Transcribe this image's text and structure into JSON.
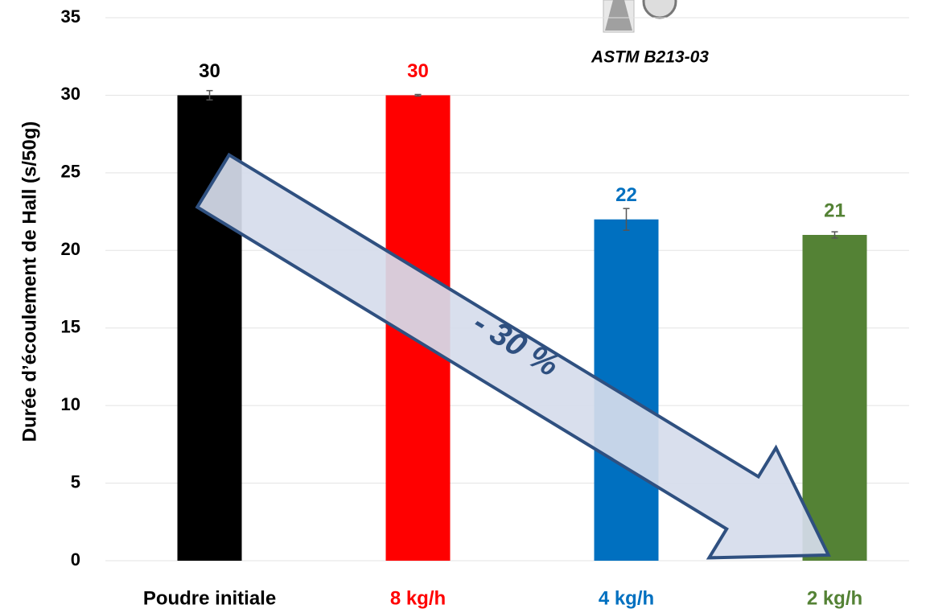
{
  "chart_data": {
    "type": "bar",
    "y_label": "Durée d’écoulement de Hall  (s/50g)",
    "categories": [
      "Poudre initiale",
      "8 kg/h",
      "4 kg/h",
      "2 kg/h"
    ],
    "values": [
      30,
      30,
      22,
      21
    ],
    "errors": [
      0.3,
      0.05,
      0.7,
      0.2
    ],
    "colors": [
      "#000000",
      "#ff0000",
      "#0070c0",
      "#548235"
    ],
    "ylim": [
      0,
      35
    ],
    "yticks": [
      0,
      5,
      10,
      15,
      20,
      25,
      30,
      35
    ],
    "grid": true,
    "annotations": [
      "- 30 %",
      "ASTM B213-03"
    ]
  }
}
